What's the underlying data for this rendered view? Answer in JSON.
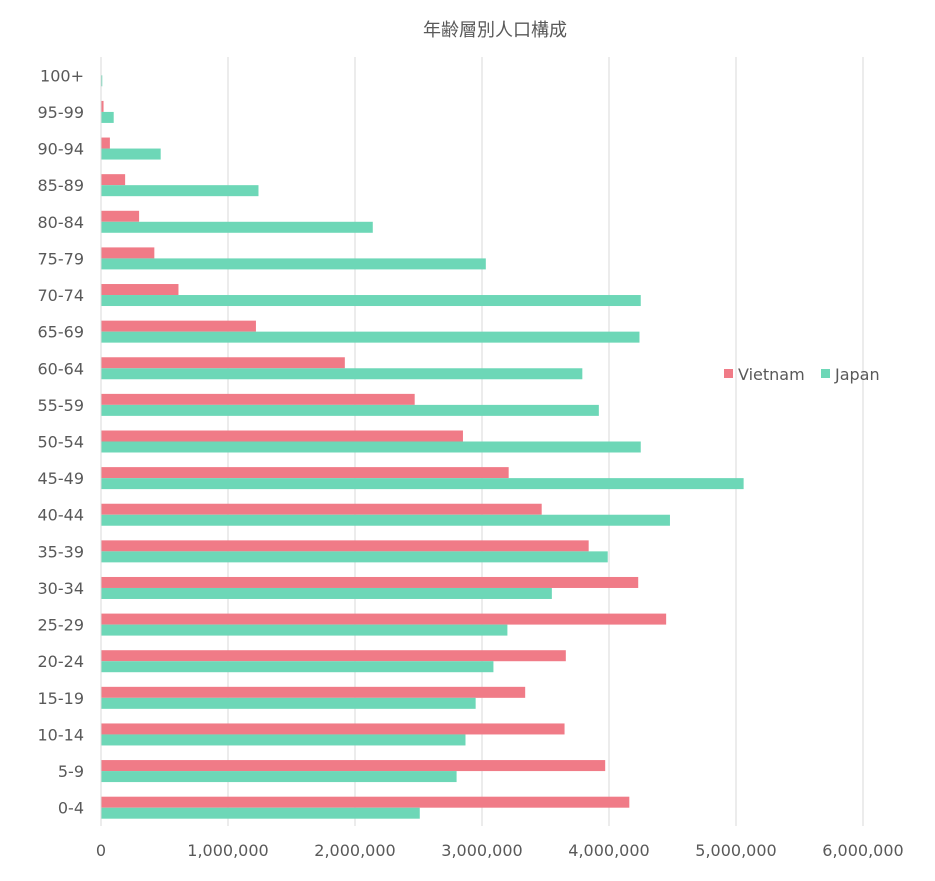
{
  "chart_data": {
    "type": "bar",
    "orientation": "horizontal",
    "title": "年齢層別人口構成",
    "categories": [
      "0-4",
      "5-9",
      "10-14",
      "15-19",
      "20-24",
      "25-29",
      "30-34",
      "35-39",
      "40-44",
      "45-49",
      "50-54",
      "55-59",
      "60-64",
      "65-69",
      "70-74",
      "75-79",
      "80-84",
      "85-89",
      "90-94",
      "95-99",
      "100+"
    ],
    "series": [
      {
        "name": "Vietnam",
        "color": "#F07B87",
        "values": [
          4160000,
          3970000,
          3650000,
          3340000,
          3660000,
          4450000,
          4230000,
          3840000,
          3470000,
          3210000,
          2850000,
          2470000,
          1920000,
          1220000,
          610000,
          420000,
          300000,
          190000,
          70000,
          20000,
          0
        ]
      },
      {
        "name": "Japan",
        "color": "#6DD7B7",
        "values": [
          2510000,
          2800000,
          2870000,
          2950000,
          3090000,
          3200000,
          3550000,
          3990000,
          4480000,
          5060000,
          4250000,
          3920000,
          3790000,
          4240000,
          4250000,
          3030000,
          2140000,
          1240000,
          470000,
          100000,
          10000
        ]
      }
    ],
    "xlim": [
      0,
      6000000
    ],
    "xticks": [
      "0",
      "1,000,000",
      "2,000,000",
      "3,000,000",
      "4,000,000",
      "5,000,000",
      "6,000,000"
    ],
    "grid": "vertical",
    "legend_position": "right"
  }
}
